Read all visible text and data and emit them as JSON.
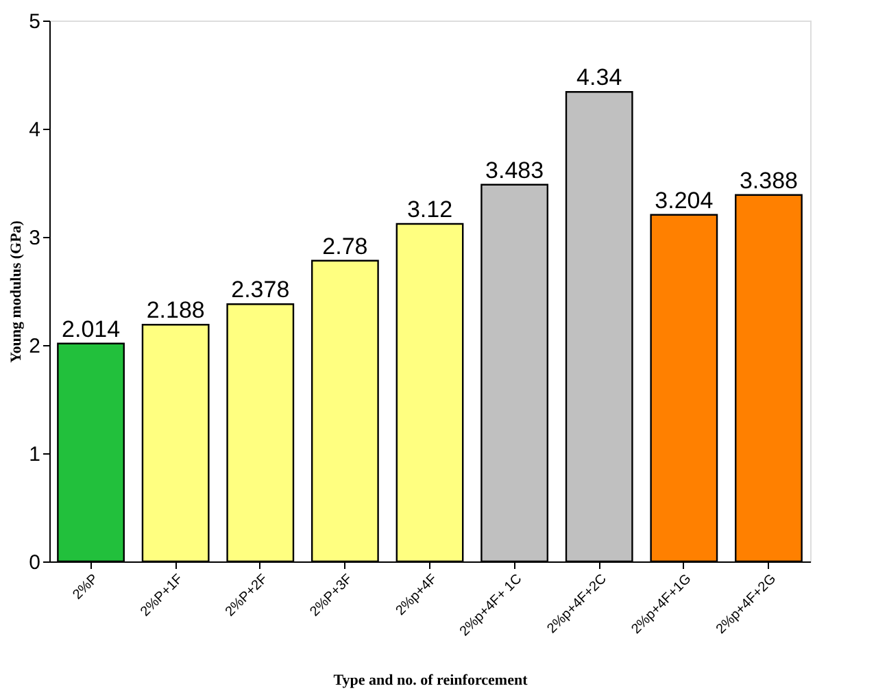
{
  "chart_data": {
    "type": "bar",
    "xlabel": "Type and no. of reinforcement",
    "ylabel": "Young modulus (GPa)",
    "categories": [
      "2%P",
      "2%P+1F",
      "2%P+2F",
      "2%P+3F",
      "2%p+4F",
      "2%p+4F+ 1C",
      "2%p+4F+2C",
      "2%p+4F+1G",
      "2%p+4F+2G"
    ],
    "values": [
      2.014,
      2.188,
      2.378,
      2.78,
      3.12,
      3.483,
      4.34,
      3.204,
      3.388
    ],
    "colors": [
      "#22c03c",
      "#ffff80",
      "#ffff80",
      "#ffff80",
      "#ffff80",
      "#c0c0c0",
      "#c0c0c0",
      "#ff8000",
      "#ff8000"
    ],
    "ylim": [
      0,
      5
    ],
    "yticks": [
      0,
      1,
      2,
      3,
      4,
      5
    ],
    "grid": false,
    "data_labels": true
  }
}
